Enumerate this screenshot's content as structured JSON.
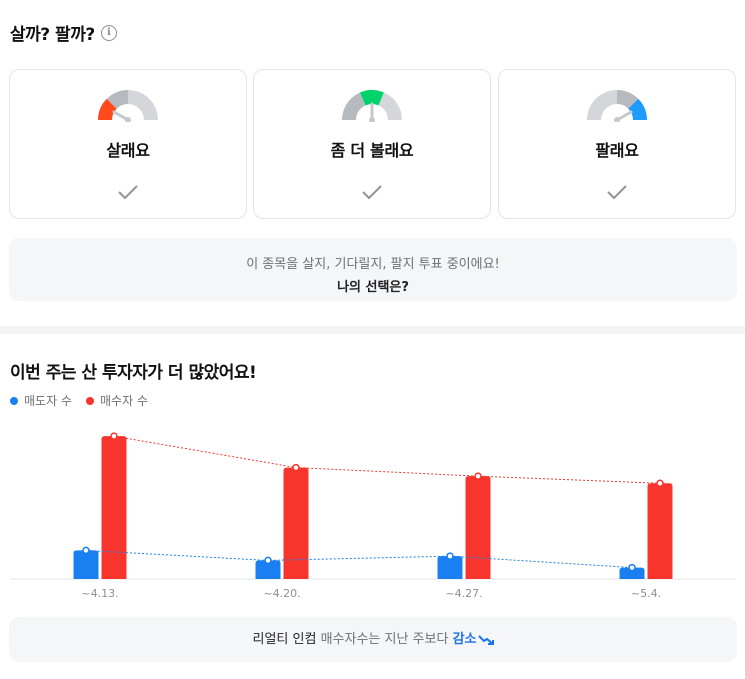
{
  "header": {
    "title": "살까? 팔까?",
    "info_icon": "info-circle-icon"
  },
  "vote_options": [
    {
      "label": "살래요",
      "icon": "gauge-buy-icon",
      "accent": "#ff4a1c"
    },
    {
      "label": "좀 더 볼래요",
      "icon": "gauge-hold-icon",
      "accent": "#00d26a"
    },
    {
      "label": "팔래요",
      "icon": "gauge-sell-icon",
      "accent": "#1e9bff"
    }
  ],
  "notice": {
    "line1": "이 종목을 살지, 기다릴지, 팔지 투표 중이에요!",
    "line2": "나의 선택은?"
  },
  "colors": {
    "sell": "#1a7ff0",
    "buy": "#f7352d",
    "gauge_grey": "#b6b9be",
    "gauge_light": "#d4d6d9"
  },
  "chart_data": {
    "type": "bar",
    "title": "이번 주는 산 투자자가 더 많았어요!",
    "categories": [
      "~4.13.",
      "~4.20.",
      "~4.27.",
      "~5.4."
    ],
    "series": [
      {
        "name": "매도자 수",
        "values": [
          20,
          13,
          16,
          8
        ]
      },
      {
        "name": "매수자 수",
        "values": [
          100,
          78,
          72,
          67
        ]
      }
    ],
    "ylim": [
      0,
      105
    ],
    "grid": false,
    "legend": "top-left"
  },
  "summary": {
    "prefix": "리얼티 인컴",
    "middle": "매수자수는 지난 주보다",
    "trend": "감소",
    "trend_icon": "trend-down-icon"
  }
}
